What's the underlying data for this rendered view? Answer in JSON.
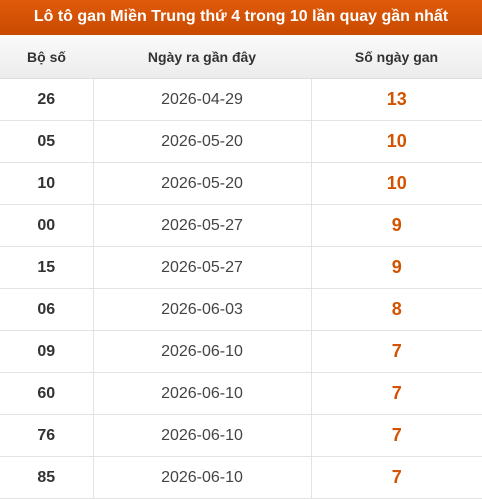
{
  "header": {
    "title": "Lô tô gan Miền Trung thứ 4 trong 10 lần quay gần nhất"
  },
  "table": {
    "columns": [
      "Bộ số",
      "Ngày ra gần đây",
      "Số ngày gan"
    ],
    "rows": [
      [
        "26",
        "2026-04-29",
        13
      ],
      [
        "05",
        "2026-05-20",
        10
      ],
      [
        "10",
        "2026-05-20",
        10
      ],
      [
        "00",
        "2026-05-27",
        9
      ],
      [
        "15",
        "2026-05-27",
        9
      ],
      [
        "06",
        "2026-06-03",
        8
      ],
      [
        "09",
        "2026-06-10",
        7
      ],
      [
        "60",
        "2026-06-10",
        7
      ],
      [
        "76",
        "2026-06-10",
        7
      ],
      [
        "85",
        "2026-06-10",
        7
      ]
    ]
  }
}
